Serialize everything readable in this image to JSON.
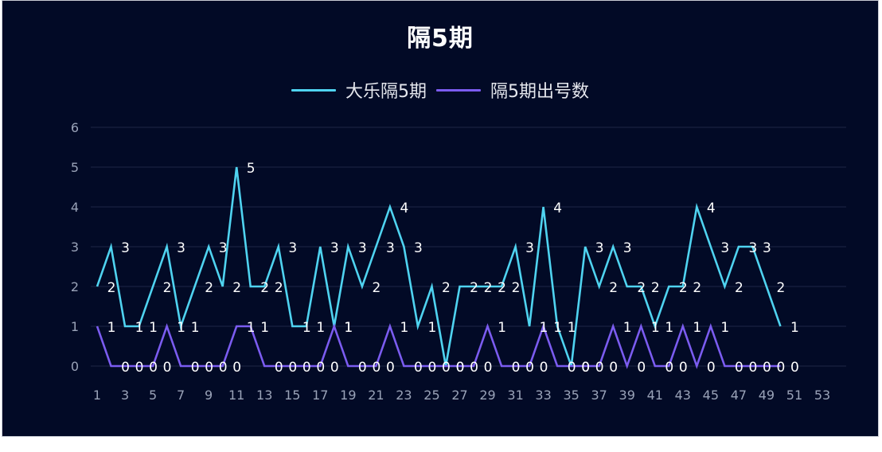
{
  "header": {
    "title": "隔5期"
  },
  "legend": [
    {
      "label": "大乐隔5期",
      "color": "#4fd3f0"
    },
    {
      "label": "隔5期出号数",
      "color": "#7b5cf0"
    }
  ],
  "colors": {
    "background": "#020a26",
    "grid": "#1e2745",
    "tick_text": "#9aa3b8",
    "data_label": "#ffffff"
  },
  "chart_data": {
    "type": "line",
    "title": "隔5期",
    "xlabel": "",
    "ylabel": "",
    "ylim": [
      0,
      6
    ],
    "yticks": [
      0,
      1,
      2,
      3,
      4,
      5,
      6
    ],
    "xlim": [
      1,
      53
    ],
    "xticks": [
      1,
      3,
      5,
      7,
      9,
      11,
      13,
      15,
      17,
      19,
      21,
      23,
      25,
      27,
      29,
      31,
      33,
      35,
      37,
      39,
      41,
      43,
      45,
      47,
      49,
      51,
      53
    ],
    "grid": true,
    "legend_position": "top",
    "x": [
      1,
      2,
      3,
      4,
      5,
      6,
      7,
      8,
      9,
      10,
      11,
      12,
      13,
      14,
      15,
      16,
      17,
      18,
      19,
      20,
      21,
      22,
      23,
      24,
      25,
      26,
      27,
      28,
      29,
      30,
      31,
      32,
      33,
      34,
      35,
      36,
      37,
      38,
      39,
      40,
      41,
      42,
      43,
      44,
      45,
      46,
      47,
      48,
      49,
      50
    ],
    "series": [
      {
        "name": "大乐隔5期",
        "color": "#4fd3f0",
        "values": [
          2,
          3,
          1,
          1,
          2,
          3,
          1,
          2,
          3,
          2,
          5,
          2,
          2,
          3,
          1,
          1,
          3,
          1,
          3,
          2,
          3,
          4,
          3,
          1,
          2,
          0,
          2,
          2,
          2,
          2,
          3,
          1,
          4,
          1,
          0,
          3,
          2,
          3,
          2,
          2,
          1,
          2,
          2,
          4,
          3,
          2,
          3,
          3,
          2,
          1
        ]
      },
      {
        "name": "隔5期出号数",
        "color": "#7b5cf0",
        "values": [
          1,
          0,
          0,
          0,
          0,
          1,
          0,
          0,
          0,
          0,
          1,
          1,
          0,
          0,
          0,
          0,
          0,
          1,
          0,
          0,
          0,
          1,
          0,
          0,
          0,
          0,
          0,
          0,
          1,
          0,
          0,
          0,
          1,
          0,
          0,
          0,
          0,
          1,
          0,
          1,
          0,
          0,
          1,
          0,
          1,
          0,
          0,
          0,
          0,
          0
        ]
      }
    ]
  }
}
